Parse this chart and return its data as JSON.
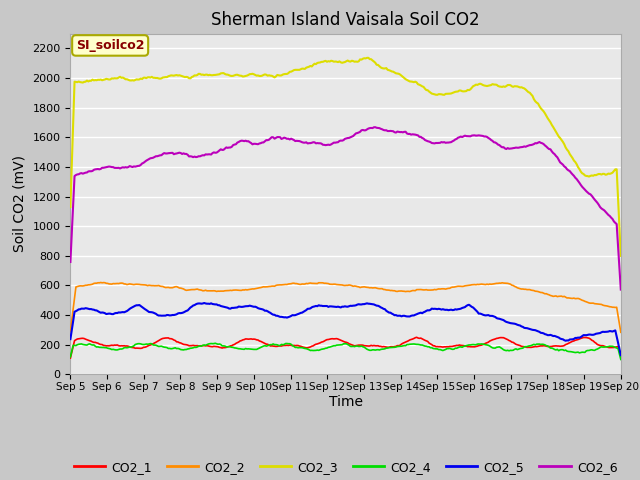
{
  "title": "Sherman Island Vaisala Soil CO2",
  "xlabel": "Time",
  "ylabel": "Soil CO2 (mV)",
  "annotation": "SI_soilco2",
  "ylim": [
    0,
    2300
  ],
  "yticks": [
    0,
    200,
    400,
    600,
    800,
    1000,
    1200,
    1400,
    1600,
    1800,
    2000,
    2200
  ],
  "x_tick_labels": [
    "Sep 5",
    "Sep 6",
    "Sep 7",
    "Sep 8",
    "Sep 9",
    "Sep 10",
    "Sep 11",
    "Sep 12",
    "Sep 13",
    "Sep 14",
    "Sep 15",
    "Sep 16",
    "Sep 17",
    "Sep 18",
    "Sep 19",
    "Sep 20"
  ],
  "series_colors": {
    "CO2_1": "#ff0000",
    "CO2_2": "#ff8c00",
    "CO2_3": "#dddd00",
    "CO2_4": "#00dd00",
    "CO2_5": "#0000ee",
    "CO2_6": "#bb00bb"
  },
  "fig_bg_color": "#c8c8c8",
  "plot_bg_color": "#e8e8e8",
  "grid_color": "#ffffff",
  "annotation_bg": "#ffffcc",
  "annotation_border": "#aaaa00",
  "annotation_text_color": "#880000"
}
